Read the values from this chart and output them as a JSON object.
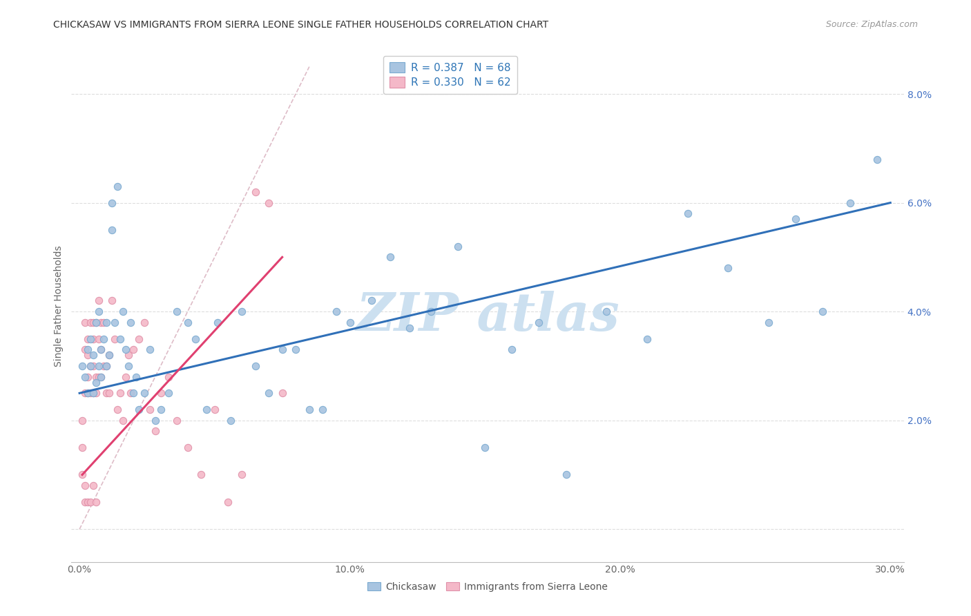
{
  "title": "CHICKASAW VS IMMIGRANTS FROM SIERRA LEONE SINGLE FATHER HOUSEHOLDS CORRELATION CHART",
  "source": "Source: ZipAtlas.com",
  "ylabel": "Single Father Households",
  "xlim": [
    -0.003,
    0.305
  ],
  "ylim": [
    -0.006,
    0.088
  ],
  "xticks": [
    0.0,
    0.05,
    0.1,
    0.15,
    0.2,
    0.25,
    0.3
  ],
  "xtick_labels": [
    "0.0%",
    "",
    "10.0%",
    "",
    "20.0%",
    "",
    "30.0%"
  ],
  "yticks": [
    0.0,
    0.02,
    0.04,
    0.06,
    0.08
  ],
  "ytick_labels": [
    "",
    "2.0%",
    "4.0%",
    "6.0%",
    "8.0%"
  ],
  "legend_r1": "R = 0.387",
  "legend_n1": "N = 68",
  "legend_r2": "R = 0.330",
  "legend_n2": "N = 62",
  "chickasaw_color": "#a8c4e0",
  "chickasaw_edge": "#7aaad0",
  "sierra_leone_color": "#f4b8c8",
  "sierra_leone_edge": "#e090a8",
  "trendline_blue": "#3070b8",
  "trendline_pink": "#e04070",
  "grid_color": "#dddddd",
  "watermark_color": "#cce0f0",
  "watermark_text": "ZIP atlas",
  "title_color": "#333333",
  "source_color": "#999999",
  "tick_color": "#4472c4",
  "xtick_color": "#666666",
  "chickasaw_x": [
    0.001,
    0.002,
    0.003,
    0.003,
    0.004,
    0.004,
    0.005,
    0.005,
    0.006,
    0.006,
    0.007,
    0.007,
    0.008,
    0.008,
    0.009,
    0.01,
    0.01,
    0.011,
    0.012,
    0.012,
    0.013,
    0.014,
    0.015,
    0.016,
    0.017,
    0.018,
    0.019,
    0.02,
    0.021,
    0.022,
    0.024,
    0.026,
    0.028,
    0.03,
    0.033,
    0.036,
    0.04,
    0.043,
    0.047,
    0.051,
    0.056,
    0.06,
    0.065,
    0.07,
    0.075,
    0.08,
    0.085,
    0.09,
    0.095,
    0.1,
    0.108,
    0.115,
    0.122,
    0.13,
    0.14,
    0.15,
    0.16,
    0.17,
    0.18,
    0.195,
    0.21,
    0.225,
    0.24,
    0.255,
    0.265,
    0.275,
    0.285,
    0.295
  ],
  "chickasaw_y": [
    0.03,
    0.028,
    0.033,
    0.025,
    0.035,
    0.03,
    0.032,
    0.025,
    0.038,
    0.027,
    0.03,
    0.04,
    0.028,
    0.033,
    0.035,
    0.03,
    0.038,
    0.032,
    0.06,
    0.055,
    0.038,
    0.063,
    0.035,
    0.04,
    0.033,
    0.03,
    0.038,
    0.025,
    0.028,
    0.022,
    0.025,
    0.033,
    0.02,
    0.022,
    0.025,
    0.04,
    0.038,
    0.035,
    0.022,
    0.038,
    0.02,
    0.04,
    0.03,
    0.025,
    0.033,
    0.033,
    0.022,
    0.022,
    0.04,
    0.038,
    0.042,
    0.05,
    0.037,
    0.04,
    0.052,
    0.015,
    0.033,
    0.038,
    0.01,
    0.04,
    0.035,
    0.058,
    0.048,
    0.038,
    0.057,
    0.04,
    0.06,
    0.068
  ],
  "sierra_leone_x": [
    0.001,
    0.001,
    0.001,
    0.002,
    0.002,
    0.002,
    0.002,
    0.002,
    0.003,
    0.003,
    0.003,
    0.003,
    0.003,
    0.004,
    0.004,
    0.004,
    0.004,
    0.005,
    0.005,
    0.005,
    0.005,
    0.005,
    0.006,
    0.006,
    0.006,
    0.006,
    0.007,
    0.007,
    0.007,
    0.008,
    0.008,
    0.008,
    0.009,
    0.009,
    0.01,
    0.01,
    0.011,
    0.011,
    0.012,
    0.013,
    0.014,
    0.015,
    0.016,
    0.017,
    0.018,
    0.019,
    0.02,
    0.022,
    0.024,
    0.026,
    0.028,
    0.03,
    0.033,
    0.036,
    0.04,
    0.045,
    0.05,
    0.055,
    0.06,
    0.065,
    0.07,
    0.075
  ],
  "sierra_leone_y": [
    0.01,
    0.015,
    0.02,
    0.033,
    0.038,
    0.025,
    0.008,
    0.005,
    0.005,
    0.025,
    0.028,
    0.032,
    0.035,
    0.03,
    0.025,
    0.038,
    0.005,
    0.035,
    0.025,
    0.008,
    0.038,
    0.03,
    0.025,
    0.038,
    0.028,
    0.005,
    0.035,
    0.028,
    0.042,
    0.038,
    0.028,
    0.033,
    0.038,
    0.03,
    0.025,
    0.03,
    0.032,
    0.025,
    0.042,
    0.035,
    0.022,
    0.025,
    0.02,
    0.028,
    0.032,
    0.025,
    0.033,
    0.035,
    0.038,
    0.022,
    0.018,
    0.025,
    0.028,
    0.02,
    0.015,
    0.01,
    0.022,
    0.005,
    0.01,
    0.062,
    0.06,
    0.025
  ],
  "trendline_blue_x0": 0.0,
  "trendline_blue_y0": 0.025,
  "trendline_blue_x1": 0.3,
  "trendline_blue_y1": 0.06,
  "trendline_pink_x0": 0.001,
  "trendline_pink_y0": 0.01,
  "trendline_pink_x1": 0.075,
  "trendline_pink_y1": 0.05,
  "refline_x0": 0.0,
  "refline_y0": 0.0,
  "refline_x1": 0.085,
  "refline_y1": 0.085
}
